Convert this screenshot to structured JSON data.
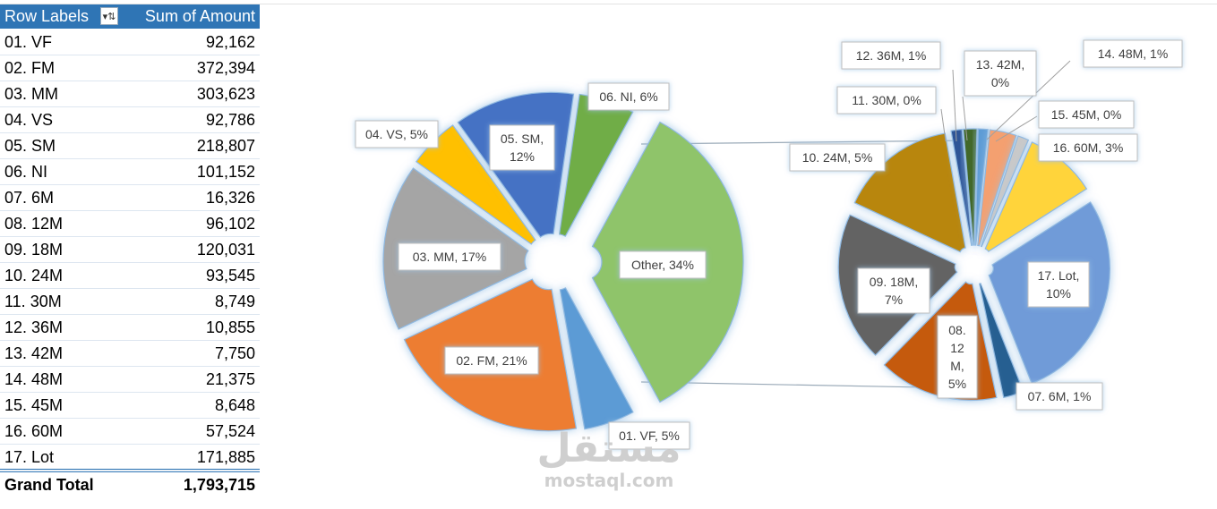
{
  "pivot": {
    "header_label": "Row Labels",
    "header_value": "Sum of Amount",
    "filter_icon": "sort-filter-icon",
    "rows": [
      {
        "label": "01. VF",
        "value": "92,162"
      },
      {
        "label": "02. FM",
        "value": "372,394"
      },
      {
        "label": "03. MM",
        "value": "303,623"
      },
      {
        "label": "04. VS",
        "value": "92,786"
      },
      {
        "label": "05. SM",
        "value": "218,807"
      },
      {
        "label": "06. NI",
        "value": "101,152"
      },
      {
        "label": "07. 6M",
        "value": "16,326"
      },
      {
        "label": "08. 12M",
        "value": "96,102"
      },
      {
        "label": "09. 18M",
        "value": "120,031"
      },
      {
        "label": "10. 24M",
        "value": "93,545"
      },
      {
        "label": "11. 30M",
        "value": "8,749"
      },
      {
        "label": "12. 36M",
        "value": "10,855"
      },
      {
        "label": "13. 42M",
        "value": "7,750"
      },
      {
        "label": "14. 48M",
        "value": "21,375"
      },
      {
        "label": "15. 45M",
        "value": "8,648"
      },
      {
        "label": "16. 60M",
        "value": "57,524"
      },
      {
        "label": "17. Lot",
        "value": "171,885"
      }
    ],
    "total_label": "Grand Total",
    "total_value": "1,793,715"
  },
  "chart_data": {
    "type": "pie",
    "variant": "pie-of-pie",
    "title": "",
    "primary": {
      "slices": [
        {
          "label": "01. VF, 5%",
          "value": 92162,
          "color": "#5b9bd5"
        },
        {
          "label": "02. FM, 21%",
          "value": 372394,
          "color": "#ed7d31"
        },
        {
          "label": "03. MM, 17%",
          "value": 303623,
          "color": "#a5a5a5"
        },
        {
          "label": "04. VS, 5%",
          "value": 92786,
          "color": "#ffc000"
        },
        {
          "label": "05. SM, 12%",
          "value": 218807,
          "color": "#4472c4"
        },
        {
          "label": "06. NI, 6%",
          "value": 101152,
          "color": "#70ad47"
        },
        {
          "label": "Other, 34%",
          "value": 612790,
          "color": "#8fc46b"
        }
      ]
    },
    "secondary": {
      "slices": [
        {
          "label": "07. 6M, 1%",
          "value": 16326,
          "color": "#255e91"
        },
        {
          "label": "08. 12M, 5%",
          "value": 96102,
          "color": "#c55a11"
        },
        {
          "label": "09. 18M, 7%",
          "value": 120031,
          "color": "#636363"
        },
        {
          "label": "10. 24M, 5%",
          "value": 93545,
          "color": "#b8860b"
        },
        {
          "label": "11. 30M, 0%",
          "value": 8749,
          "color": "#2e5597"
        },
        {
          "label": "12. 36M, 1%",
          "value": 10855,
          "color": "#43682b"
        },
        {
          "label": "13. 42M, 0%",
          "value": 7750,
          "color": "#5b9bd5"
        },
        {
          "label": "14. 48M, 1%",
          "value": 21375,
          "color": "#f4a070"
        },
        {
          "label": "15. 45M, 0%",
          "value": 8648,
          "color": "#c9c9c9"
        },
        {
          "label": "16. 60M, 3%",
          "value": 57524,
          "color": "#ffd43b"
        },
        {
          "label": "17. Lot, 10%",
          "value": 171885,
          "color": "#6f9bd8"
        }
      ]
    }
  },
  "watermark": {
    "arabic": "مستقل",
    "latin": "mostaql.com"
  }
}
